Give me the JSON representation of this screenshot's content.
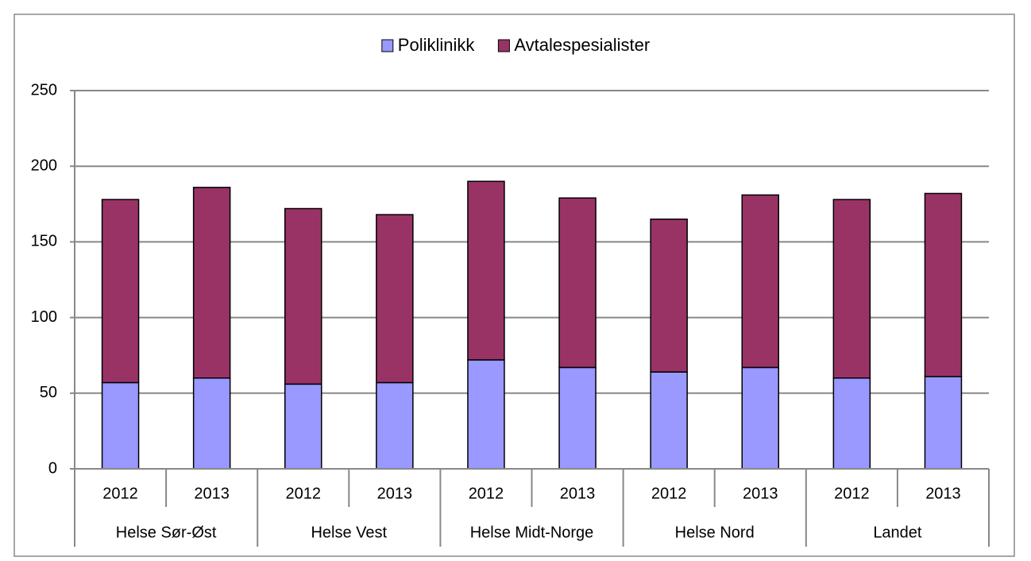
{
  "chart_data": {
    "type": "stacked-bar",
    "categories": [
      "2012",
      "2013",
      "2012",
      "2013",
      "2012",
      "2013",
      "2012",
      "2013",
      "2012",
      "2013"
    ],
    "groups": [
      "Helse Sør-Øst",
      "Helse Vest",
      "Helse Midt-Norge",
      "Helse Nord",
      "Landet"
    ],
    "series": [
      {
        "name": "Poliklinikk",
        "color": "#9999ff",
        "values": [
          57,
          60,
          56,
          57,
          72,
          67,
          64,
          67,
          60,
          61
        ]
      },
      {
        "name": "Avtalespesialister",
        "color": "#993366",
        "values": [
          121,
          126,
          116,
          111,
          118,
          112,
          101,
          114,
          118,
          121
        ]
      }
    ],
    "ylim": [
      0,
      250
    ],
    "yticks": [
      0,
      50,
      100,
      150,
      200,
      250
    ],
    "grid": true,
    "legend": "top"
  }
}
